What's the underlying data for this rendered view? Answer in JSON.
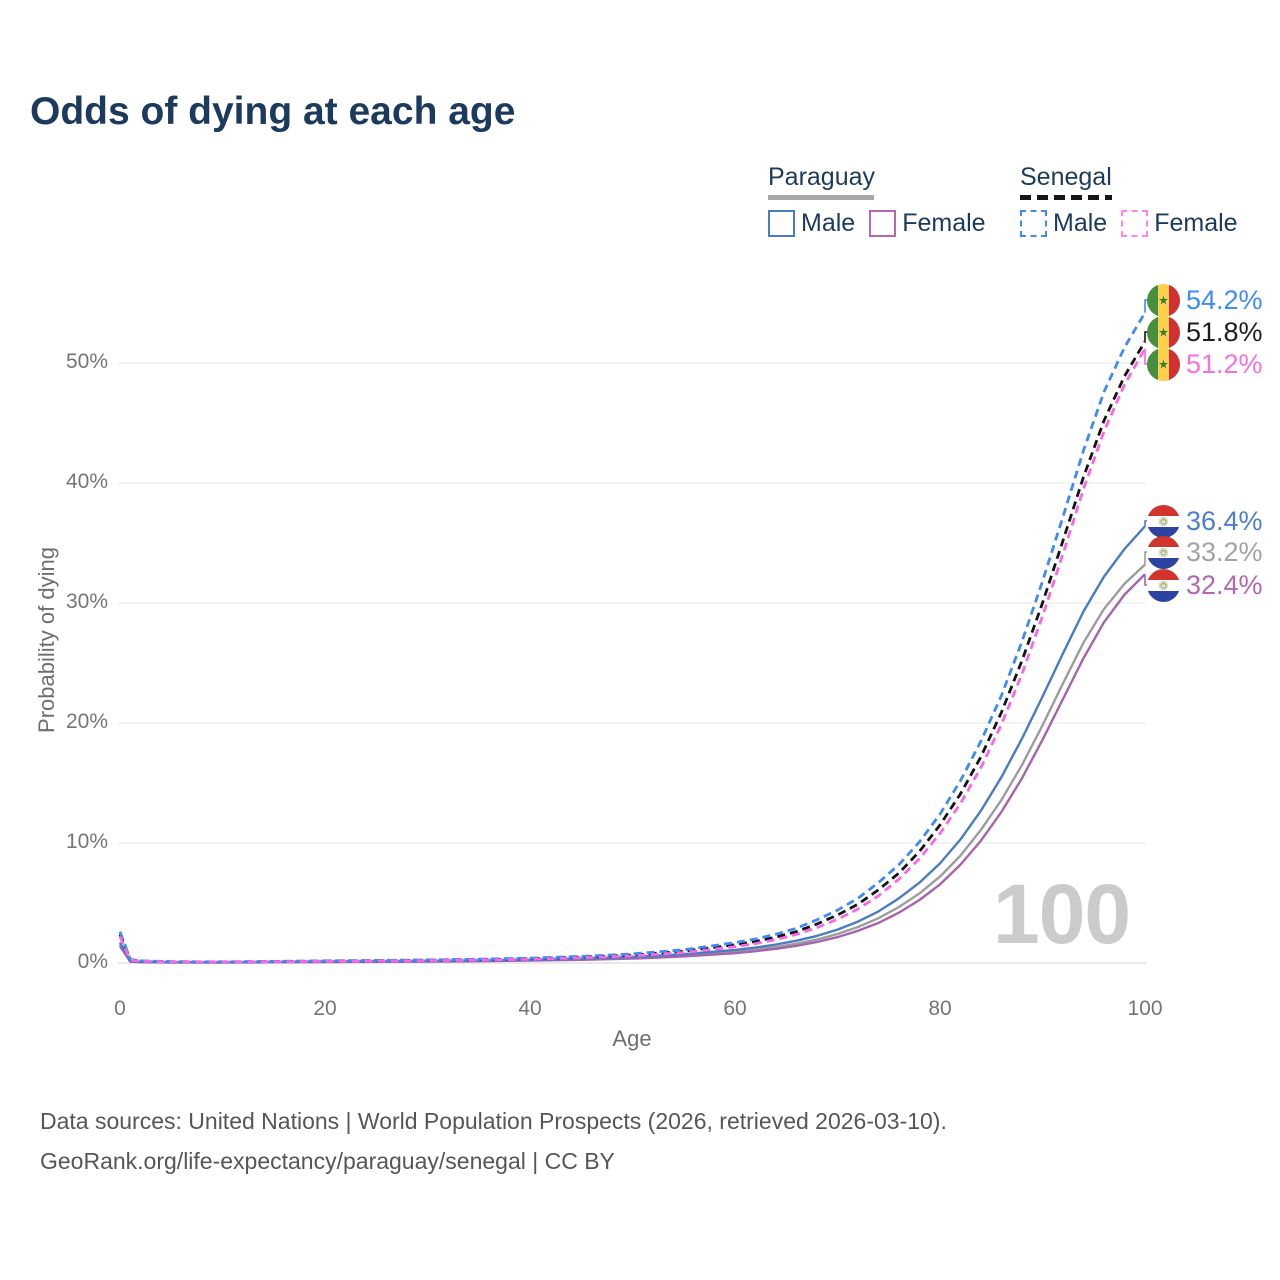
{
  "title": "Odds of dying at each age",
  "legend": {
    "groups": [
      {
        "country": "Paraguay",
        "line_style": "solid",
        "underline_color": "#a8a8a8",
        "items": [
          {
            "label": "Male",
            "color": "#4a7cc4"
          },
          {
            "label": "Female",
            "color": "#b568ad"
          }
        ]
      },
      {
        "country": "Senegal",
        "line_style": "dashed",
        "underline_color": "#161616",
        "items": [
          {
            "label": "Male",
            "color": "#3e8bf4"
          },
          {
            "label": "Female",
            "color": "#ff85ec"
          }
        ]
      }
    ]
  },
  "icons": {
    "senegal_flag": "senegal-flag-icon (circular flag: green/yellow/red vertical bands, green star)",
    "paraguay_flag": "paraguay-flag-icon (circular flag: red/white/blue horizontal bands, central emblem)"
  },
  "watermark": "100",
  "chart_data": {
    "type": "line",
    "title": "Odds of dying at each age",
    "xlabel": "Age",
    "ylabel": "Probability of dying",
    "xlim": [
      0,
      100
    ],
    "ylim": [
      0,
      55
    ],
    "grid": "horizontal",
    "legend_position": "top-right",
    "x_tick_labels": [
      "0",
      "20",
      "40",
      "60",
      "80",
      "100"
    ],
    "y_tick_labels": [
      "0%",
      "10%",
      "20%",
      "30%",
      "40%",
      "50%"
    ],
    "y_tick_values": [
      0,
      10,
      20,
      30,
      40,
      50
    ],
    "unit": "percent probability of dying at each age",
    "ages": [
      0,
      1,
      2,
      5,
      10,
      15,
      20,
      25,
      30,
      35,
      40,
      45,
      50,
      55,
      60,
      62,
      64,
      66,
      68,
      70,
      72,
      74,
      76,
      78,
      80,
      82,
      84,
      86,
      88,
      90,
      92,
      94,
      96,
      98,
      100
    ],
    "series": [
      {
        "name": "Senegal Male",
        "country": "Senegal",
        "sex": "Male",
        "style": "dashed",
        "color": "#3e8bf4",
        "end_label": "54.2%",
        "label_color": "#3e8bf4",
        "values": [
          2.6,
          0.3,
          0.18,
          0.11,
          0.1,
          0.13,
          0.18,
          0.22,
          0.26,
          0.32,
          0.41,
          0.55,
          0.76,
          1.1,
          1.7,
          2.0,
          2.4,
          2.9,
          3.6,
          4.4,
          5.4,
          6.7,
          8.2,
          10.1,
          12.4,
          15.2,
          18.5,
          22.3,
          26.8,
          31.8,
          37.2,
          42.7,
          47.6,
          51.3,
          54.2
        ]
      },
      {
        "name": "Senegal Both sexes",
        "country": "Senegal",
        "sex": "Both",
        "style": "dashed",
        "color": "#141414",
        "end_label": "51.8%",
        "label_color": "#1d1d1d",
        "values": [
          2.4,
          0.28,
          0.17,
          0.1,
          0.09,
          0.12,
          0.16,
          0.19,
          0.23,
          0.28,
          0.36,
          0.49,
          0.67,
          0.98,
          1.52,
          1.8,
          2.16,
          2.62,
          3.25,
          4.0,
          4.9,
          6.1,
          7.5,
          9.3,
          11.5,
          14.1,
          17.2,
          20.9,
          25.2,
          30.0,
          35.2,
          40.5,
          45.2,
          48.9,
          51.8
        ]
      },
      {
        "name": "Senegal Female",
        "country": "Senegal",
        "sex": "Female",
        "style": "dashed",
        "color": "#f768e5",
        "end_label": "51.2%",
        "label_color": "#f871d8",
        "values": [
          2.2,
          0.25,
          0.15,
          0.09,
          0.08,
          0.1,
          0.14,
          0.17,
          0.2,
          0.25,
          0.32,
          0.43,
          0.59,
          0.87,
          1.36,
          1.62,
          1.95,
          2.38,
          2.95,
          3.65,
          4.5,
          5.6,
          7.0,
          8.7,
          10.8,
          13.3,
          16.3,
          19.9,
          24.1,
          28.9,
          34.1,
          39.5,
          44.3,
          48.2,
          51.2
        ]
      },
      {
        "name": "Paraguay Male",
        "country": "Paraguay",
        "sex": "Male",
        "style": "solid",
        "color": "#4a7cc4",
        "end_label": "36.4%",
        "label_color": "#4d7fc9",
        "values": [
          1.7,
          0.14,
          0.09,
          0.06,
          0.06,
          0.09,
          0.13,
          0.15,
          0.17,
          0.21,
          0.27,
          0.36,
          0.5,
          0.73,
          1.08,
          1.28,
          1.54,
          1.86,
          2.26,
          2.78,
          3.45,
          4.3,
          5.4,
          6.7,
          8.3,
          10.3,
          12.7,
          15.5,
          18.7,
          22.2,
          25.8,
          29.3,
          32.2,
          34.5,
          36.4
        ]
      },
      {
        "name": "Paraguay Both sexes",
        "country": "Paraguay",
        "sex": "Both",
        "style": "solid",
        "color": "#9c9c9c",
        "end_label": "33.2%",
        "label_color": "#a3a3a3",
        "values": [
          1.55,
          0.13,
          0.08,
          0.05,
          0.05,
          0.08,
          0.11,
          0.13,
          0.15,
          0.18,
          0.23,
          0.31,
          0.43,
          0.63,
          0.93,
          1.11,
          1.33,
          1.61,
          1.96,
          2.42,
          3.0,
          3.73,
          4.67,
          5.8,
          7.2,
          8.95,
          11.1,
          13.6,
          16.5,
          19.8,
          23.3,
          26.7,
          29.5,
          31.6,
          33.2
        ]
      },
      {
        "name": "Paraguay Female",
        "country": "Paraguay",
        "sex": "Female",
        "style": "solid",
        "color": "#a763ab",
        "end_label": "32.4%",
        "label_color": "#b168b1",
        "values": [
          1.4,
          0.11,
          0.07,
          0.05,
          0.04,
          0.06,
          0.08,
          0.1,
          0.12,
          0.15,
          0.2,
          0.27,
          0.37,
          0.55,
          0.82,
          0.98,
          1.18,
          1.43,
          1.75,
          2.16,
          2.68,
          3.34,
          4.2,
          5.25,
          6.55,
          8.2,
          10.2,
          12.6,
          15.4,
          18.6,
          22.0,
          25.4,
          28.4,
          30.7,
          32.4
        ]
      }
    ]
  },
  "footer": {
    "line1": "Data sources: United Nations | World Population Prospects (2026, retrieved 2026-03-10).",
    "line2": "GeoRank.org/life-expectancy/paraguay/senegal | CC BY"
  }
}
